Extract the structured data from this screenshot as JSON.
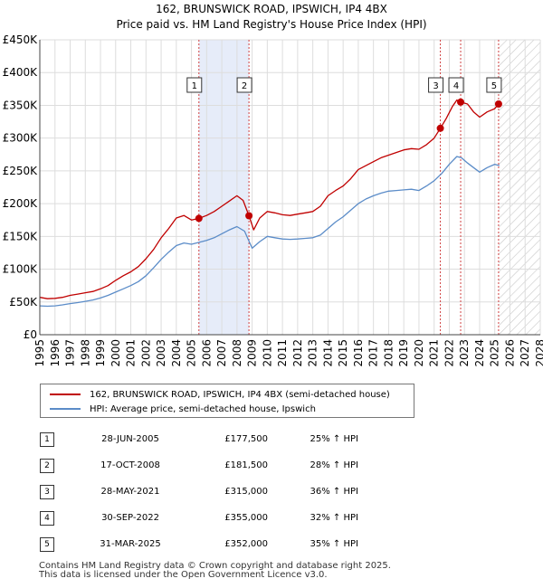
{
  "title_line1": "162, BRUNSWICK ROAD, IPSWICH, IP4 4BX",
  "title_line2": "Price paid vs. HM Land Registry's House Price Index (HPI)",
  "chart_data": {
    "type": "line",
    "title": "162, BRUNSWICK ROAD, IPSWICH, IP4 4BX — Price paid vs. HM Land Registry's House Price Index (HPI)",
    "xlabel": "",
    "ylabel": "",
    "xlim": [
      1995,
      2028
    ],
    "ylim": [
      0,
      450000
    ],
    "x_ticks": [
      1995,
      1996,
      1997,
      1998,
      1999,
      2000,
      2001,
      2002,
      2003,
      2004,
      2005,
      2006,
      2007,
      2008,
      2009,
      2010,
      2011,
      2012,
      2013,
      2014,
      2015,
      2016,
      2017,
      2018,
      2019,
      2020,
      2021,
      2022,
      2023,
      2024,
      2025,
      2026,
      2027,
      2028
    ],
    "y_ticks": [
      {
        "value": 0,
        "label": "£0"
      },
      {
        "value": 50000,
        "label": "£50K"
      },
      {
        "value": 100000,
        "label": "£100K"
      },
      {
        "value": 150000,
        "label": "£150K"
      },
      {
        "value": 200000,
        "label": "£200K"
      },
      {
        "value": 250000,
        "label": "£250K"
      },
      {
        "value": 300000,
        "label": "£300K"
      },
      {
        "value": 350000,
        "label": "£350K"
      },
      {
        "value": 400000,
        "label": "£400K"
      },
      {
        "value": 450000,
        "label": "£450K"
      }
    ],
    "grid": true,
    "shaded_span": [
      2005.49,
      2008.79
    ],
    "forecast_start": 2025.25,
    "series": [
      {
        "name": "162, BRUNSWICK ROAD, IPSWICH, IP4 4BX (semi-detached house)",
        "color": "#c00000",
        "x": [
          1995,
          1995.5,
          1996,
          1996.5,
          1997,
          1997.5,
          1998,
          1998.5,
          1999,
          1999.5,
          2000,
          2000.5,
          2001,
          2001.5,
          2002,
          2002.5,
          2003,
          2003.5,
          2004,
          2004.5,
          2005,
          2005.49,
          2006,
          2006.5,
          2007,
          2007.5,
          2008,
          2008.4,
          2008.79,
          2009.1,
          2009.5,
          2010,
          2010.5,
          2011,
          2011.5,
          2012,
          2012.5,
          2013,
          2013.5,
          2014,
          2014.5,
          2015,
          2015.5,
          2016,
          2016.5,
          2017,
          2017.5,
          2018,
          2018.5,
          2019,
          2019.5,
          2020,
          2020.5,
          2021,
          2021.41,
          2021.8,
          2022.2,
          2022.5,
          2022.75,
          2023.2,
          2023.6,
          2024,
          2024.5,
          2025,
          2025.25
        ],
        "y": [
          57000,
          55000,
          55500,
          57000,
          60000,
          62000,
          64000,
          66000,
          70000,
          75000,
          83000,
          90000,
          96000,
          104000,
          116000,
          130000,
          148000,
          162000,
          178000,
          182000,
          175000,
          177500,
          182000,
          188000,
          196000,
          204000,
          212000,
          205000,
          181500,
          160000,
          178000,
          188000,
          186000,
          183000,
          182000,
          184000,
          186000,
          188000,
          196000,
          212000,
          220000,
          227000,
          238000,
          252000,
          258000,
          264000,
          270000,
          274000,
          278000,
          282000,
          284000,
          283000,
          290000,
          300000,
          315000,
          330000,
          348000,
          358000,
          355000,
          352000,
          340000,
          332000,
          340000,
          345000,
          352000
        ]
      },
      {
        "name": "HPI: Average price, semi-detached house, Ipswich",
        "color": "#5b8cc8",
        "x": [
          1995,
          1995.5,
          1996,
          1996.5,
          1997,
          1997.5,
          1998,
          1998.5,
          1999,
          1999.5,
          2000,
          2000.5,
          2001,
          2001.5,
          2002,
          2002.5,
          2003,
          2003.5,
          2004,
          2004.5,
          2005,
          2005.5,
          2006,
          2006.5,
          2007,
          2007.5,
          2008,
          2008.5,
          2009,
          2009.5,
          2010,
          2010.5,
          2011,
          2011.5,
          2012,
          2012.5,
          2013,
          2013.5,
          2014,
          2014.5,
          2015,
          2015.5,
          2016,
          2016.5,
          2017,
          2017.5,
          2018,
          2018.5,
          2019,
          2019.5,
          2020,
          2020.5,
          2021,
          2021.5,
          2022,
          2022.5,
          2022.8,
          2023.2,
          2023.6,
          2024,
          2024.5,
          2025,
          2025.3
        ],
        "y": [
          44000,
          43500,
          44000,
          45500,
          47500,
          49000,
          51000,
          53000,
          56000,
          60000,
          65000,
          70000,
          75000,
          81000,
          90000,
          102000,
          115000,
          126000,
          136000,
          140000,
          138000,
          141000,
          144000,
          148000,
          154000,
          160000,
          165000,
          158000,
          132000,
          142000,
          150000,
          148000,
          146000,
          145500,
          146000,
          147000,
          148000,
          152000,
          162000,
          172000,
          180000,
          190000,
          200000,
          207000,
          212000,
          216000,
          219000,
          220000,
          221000,
          222000,
          220000,
          227000,
          235000,
          246000,
          260000,
          272000,
          270000,
          262000,
          255000,
          248000,
          255000,
          260000,
          258000
        ]
      }
    ],
    "sales": [
      {
        "label": "1",
        "x": 2005.49,
        "y": 177500
      },
      {
        "label": "2",
        "x": 2008.79,
        "y": 181500
      },
      {
        "label": "3",
        "x": 2021.41,
        "y": 315000
      },
      {
        "label": "4",
        "x": 2022.75,
        "y": 355000
      },
      {
        "label": "5",
        "x": 2025.25,
        "y": 352000
      }
    ]
  },
  "legend": {
    "property": "162, BRUNSWICK ROAD, IPSWICH, IP4 4BX (semi-detached house)",
    "hpi": "HPI: Average price, semi-detached house, Ipswich",
    "property_color": "#c00000",
    "hpi_color": "#5b8cc8"
  },
  "transactions": [
    {
      "num": "1",
      "date": "28-JUN-2005",
      "price": "£177,500",
      "hpi": "25% ↑ HPI"
    },
    {
      "num": "2",
      "date": "17-OCT-2008",
      "price": "£181,500",
      "hpi": "28% ↑ HPI"
    },
    {
      "num": "3",
      "date": "28-MAY-2021",
      "price": "£315,000",
      "hpi": "36% ↑ HPI"
    },
    {
      "num": "4",
      "date": "30-SEP-2022",
      "price": "£355,000",
      "hpi": "32% ↑ HPI"
    },
    {
      "num": "5",
      "date": "31-MAR-2025",
      "price": "£352,000",
      "hpi": "35% ↑ HPI"
    }
  ],
  "footer": {
    "line1": "Contains HM Land Registry data © Crown copyright and database right 2025.",
    "line2": "This data is licensed under the Open Government Licence v3.0."
  }
}
